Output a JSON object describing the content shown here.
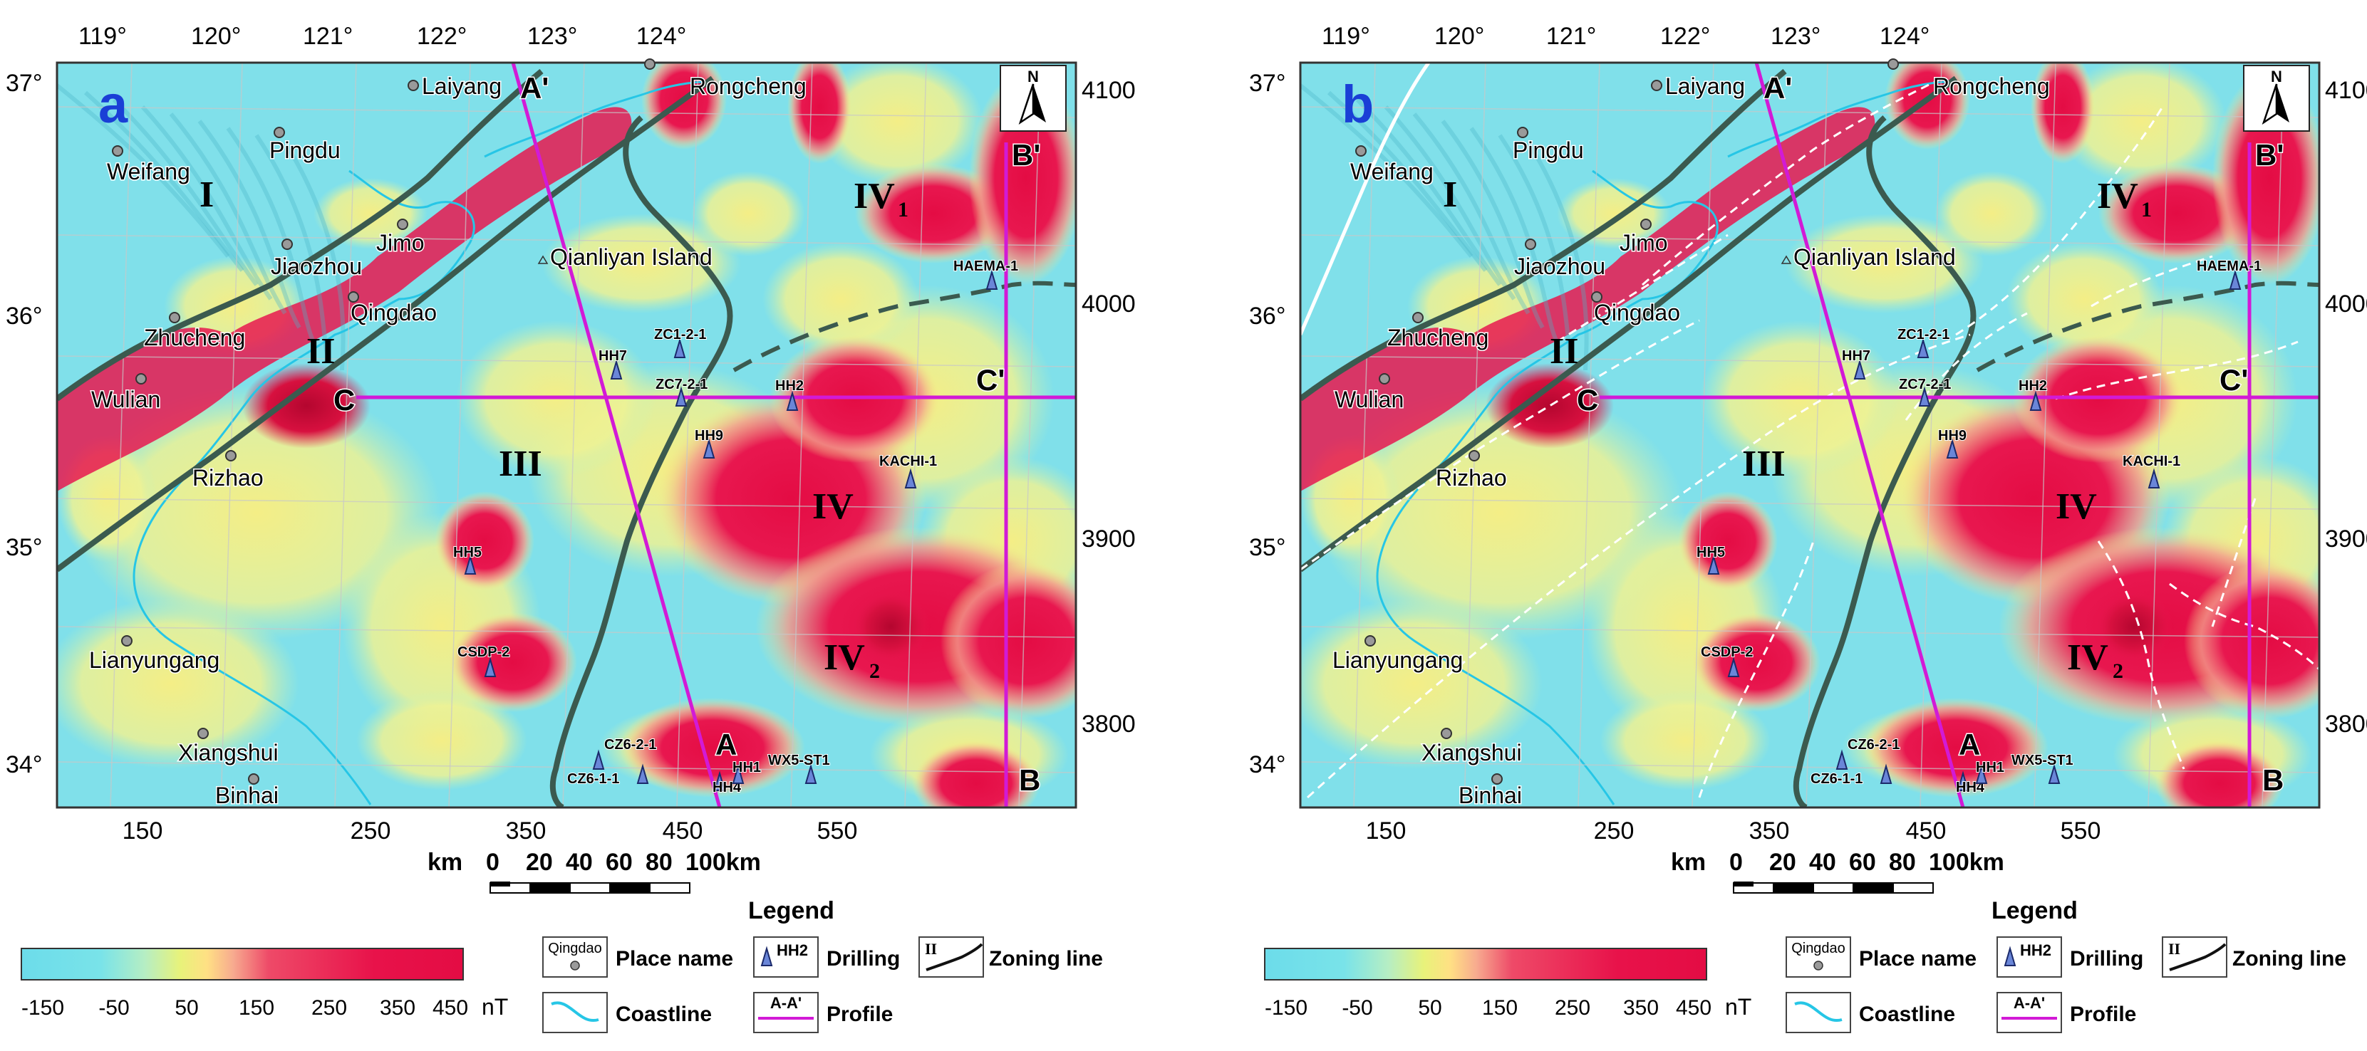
{
  "panels": [
    {
      "letter": "a"
    },
    {
      "letter": "b"
    }
  ],
  "lon_labels": [
    "119°",
    "120°",
    "121°",
    "122°",
    "123°",
    "124°"
  ],
  "lat_labels": [
    "37°",
    "36°",
    "35°",
    "34°"
  ],
  "x_labels": [
    "150",
    "250",
    "350",
    "450",
    "550"
  ],
  "y_labels": [
    "4100",
    "4000",
    "3900",
    "3800"
  ],
  "north_label": "N",
  "places": [
    "Laiyang",
    "Rongcheng",
    "Weifang",
    "Pingdu",
    "Jimo",
    "Jiaozhou",
    "Qingdao",
    "Zhucheng",
    "Wulian",
    "Rizhao",
    "Lianyungang",
    "Xiangshui",
    "Binhai"
  ],
  "island": "Qianliyan Island",
  "drillings": [
    "HH7",
    "ZC1-2-1",
    "ZC7-2-1",
    "HH2",
    "HH9",
    "KACHI-1",
    "HAEMA-1",
    "HH5",
    "CSDP-2",
    "CZ6-2-1",
    "CZ6-1-1",
    "HH4",
    "HH1",
    "WX5-ST1"
  ],
  "zones": {
    "I": "I",
    "II": "II",
    "III": "III",
    "IV": "IV",
    "IV1_main": "IV",
    "IV1_sub": "1",
    "IV2_main": "IV",
    "IV2_sub": "2"
  },
  "profiles": {
    "A": "A",
    "A_prime": "A'",
    "B": "B",
    "B_prime": "B'",
    "C": "C",
    "C_prime": "C'"
  },
  "scale": {
    "prefix": "km",
    "ticks": [
      "0",
      "20",
      "40",
      "60",
      "80",
      "100km"
    ]
  },
  "legend": {
    "title": "Legend",
    "colorbar_ticks": [
      "-150",
      "-50",
      "50",
      "150",
      "250",
      "350",
      "450"
    ],
    "unit": "nT",
    "place_sample": "Qingdao",
    "place_name": "Place name",
    "drill_sample": "HH2",
    "drilling": "Drilling",
    "zone_sample": "II",
    "zoning_line": "Zoning line",
    "coastline": "Coastline",
    "profile_sample": "A-A'",
    "profile": "Profile"
  },
  "colors": {
    "cyan": "#7fe0ea",
    "yellow": "#f2f08a",
    "red": "#e8174f",
    "profile": "#d21ad6",
    "coast": "#26c6e6",
    "zoning": "#3b5a4f",
    "frame": "#333333"
  }
}
